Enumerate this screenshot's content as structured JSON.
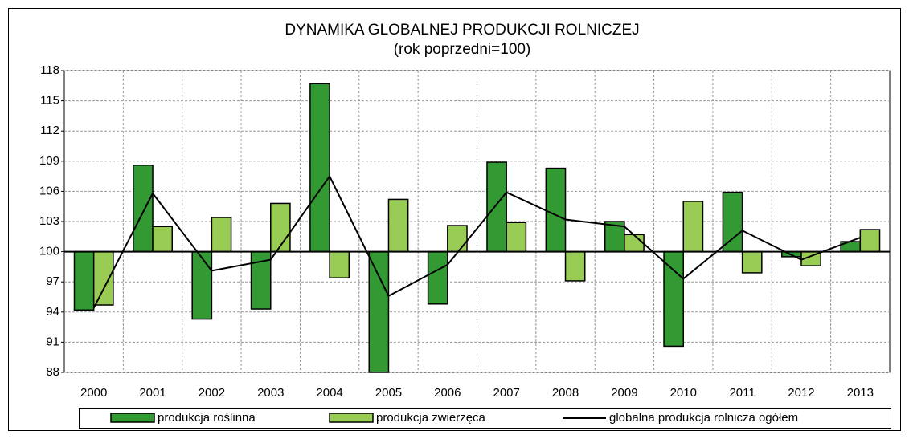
{
  "chart_data": {
    "type": "bar",
    "title": "DYNAMIKA GLOBALNEJ PRODUKCJI ROLNICZEJ",
    "subtitle": "(rok poprzedni=100)",
    "categories": [
      "2000",
      "2001",
      "2002",
      "2003",
      "2004",
      "2005",
      "2006",
      "2007",
      "2008",
      "2009",
      "2010",
      "2011",
      "2012",
      "2013"
    ],
    "series": [
      {
        "name": "produkcja roślinna",
        "color": "#339933",
        "type": "bar",
        "values": [
          94.2,
          108.6,
          93.3,
          94.3,
          116.7,
          88.0,
          94.8,
          108.9,
          108.3,
          103.0,
          90.6,
          105.9,
          99.5,
          101.0
        ]
      },
      {
        "name": "produkcja zwierzęca",
        "color": "#99cc55",
        "type": "bar",
        "values": [
          94.7,
          102.5,
          103.4,
          104.8,
          97.4,
          105.2,
          102.6,
          102.9,
          97.1,
          101.7,
          105.0,
          97.9,
          98.6,
          102.2
        ]
      },
      {
        "name": "globalna produkcja rolnicza ogółem",
        "color": "#000000",
        "type": "line",
        "values": [
          94.4,
          105.8,
          98.1,
          99.2,
          107.5,
          95.6,
          98.7,
          105.9,
          103.2,
          102.5,
          97.3,
          102.1,
          99.2,
          101.4
        ]
      }
    ],
    "ylim": [
      88,
      118
    ],
    "yticks": [
      88,
      91,
      94,
      97,
      100,
      103,
      106,
      109,
      112,
      115,
      118
    ],
    "x_axis_crosses": 100,
    "grid": true,
    "legend": "bottom"
  }
}
